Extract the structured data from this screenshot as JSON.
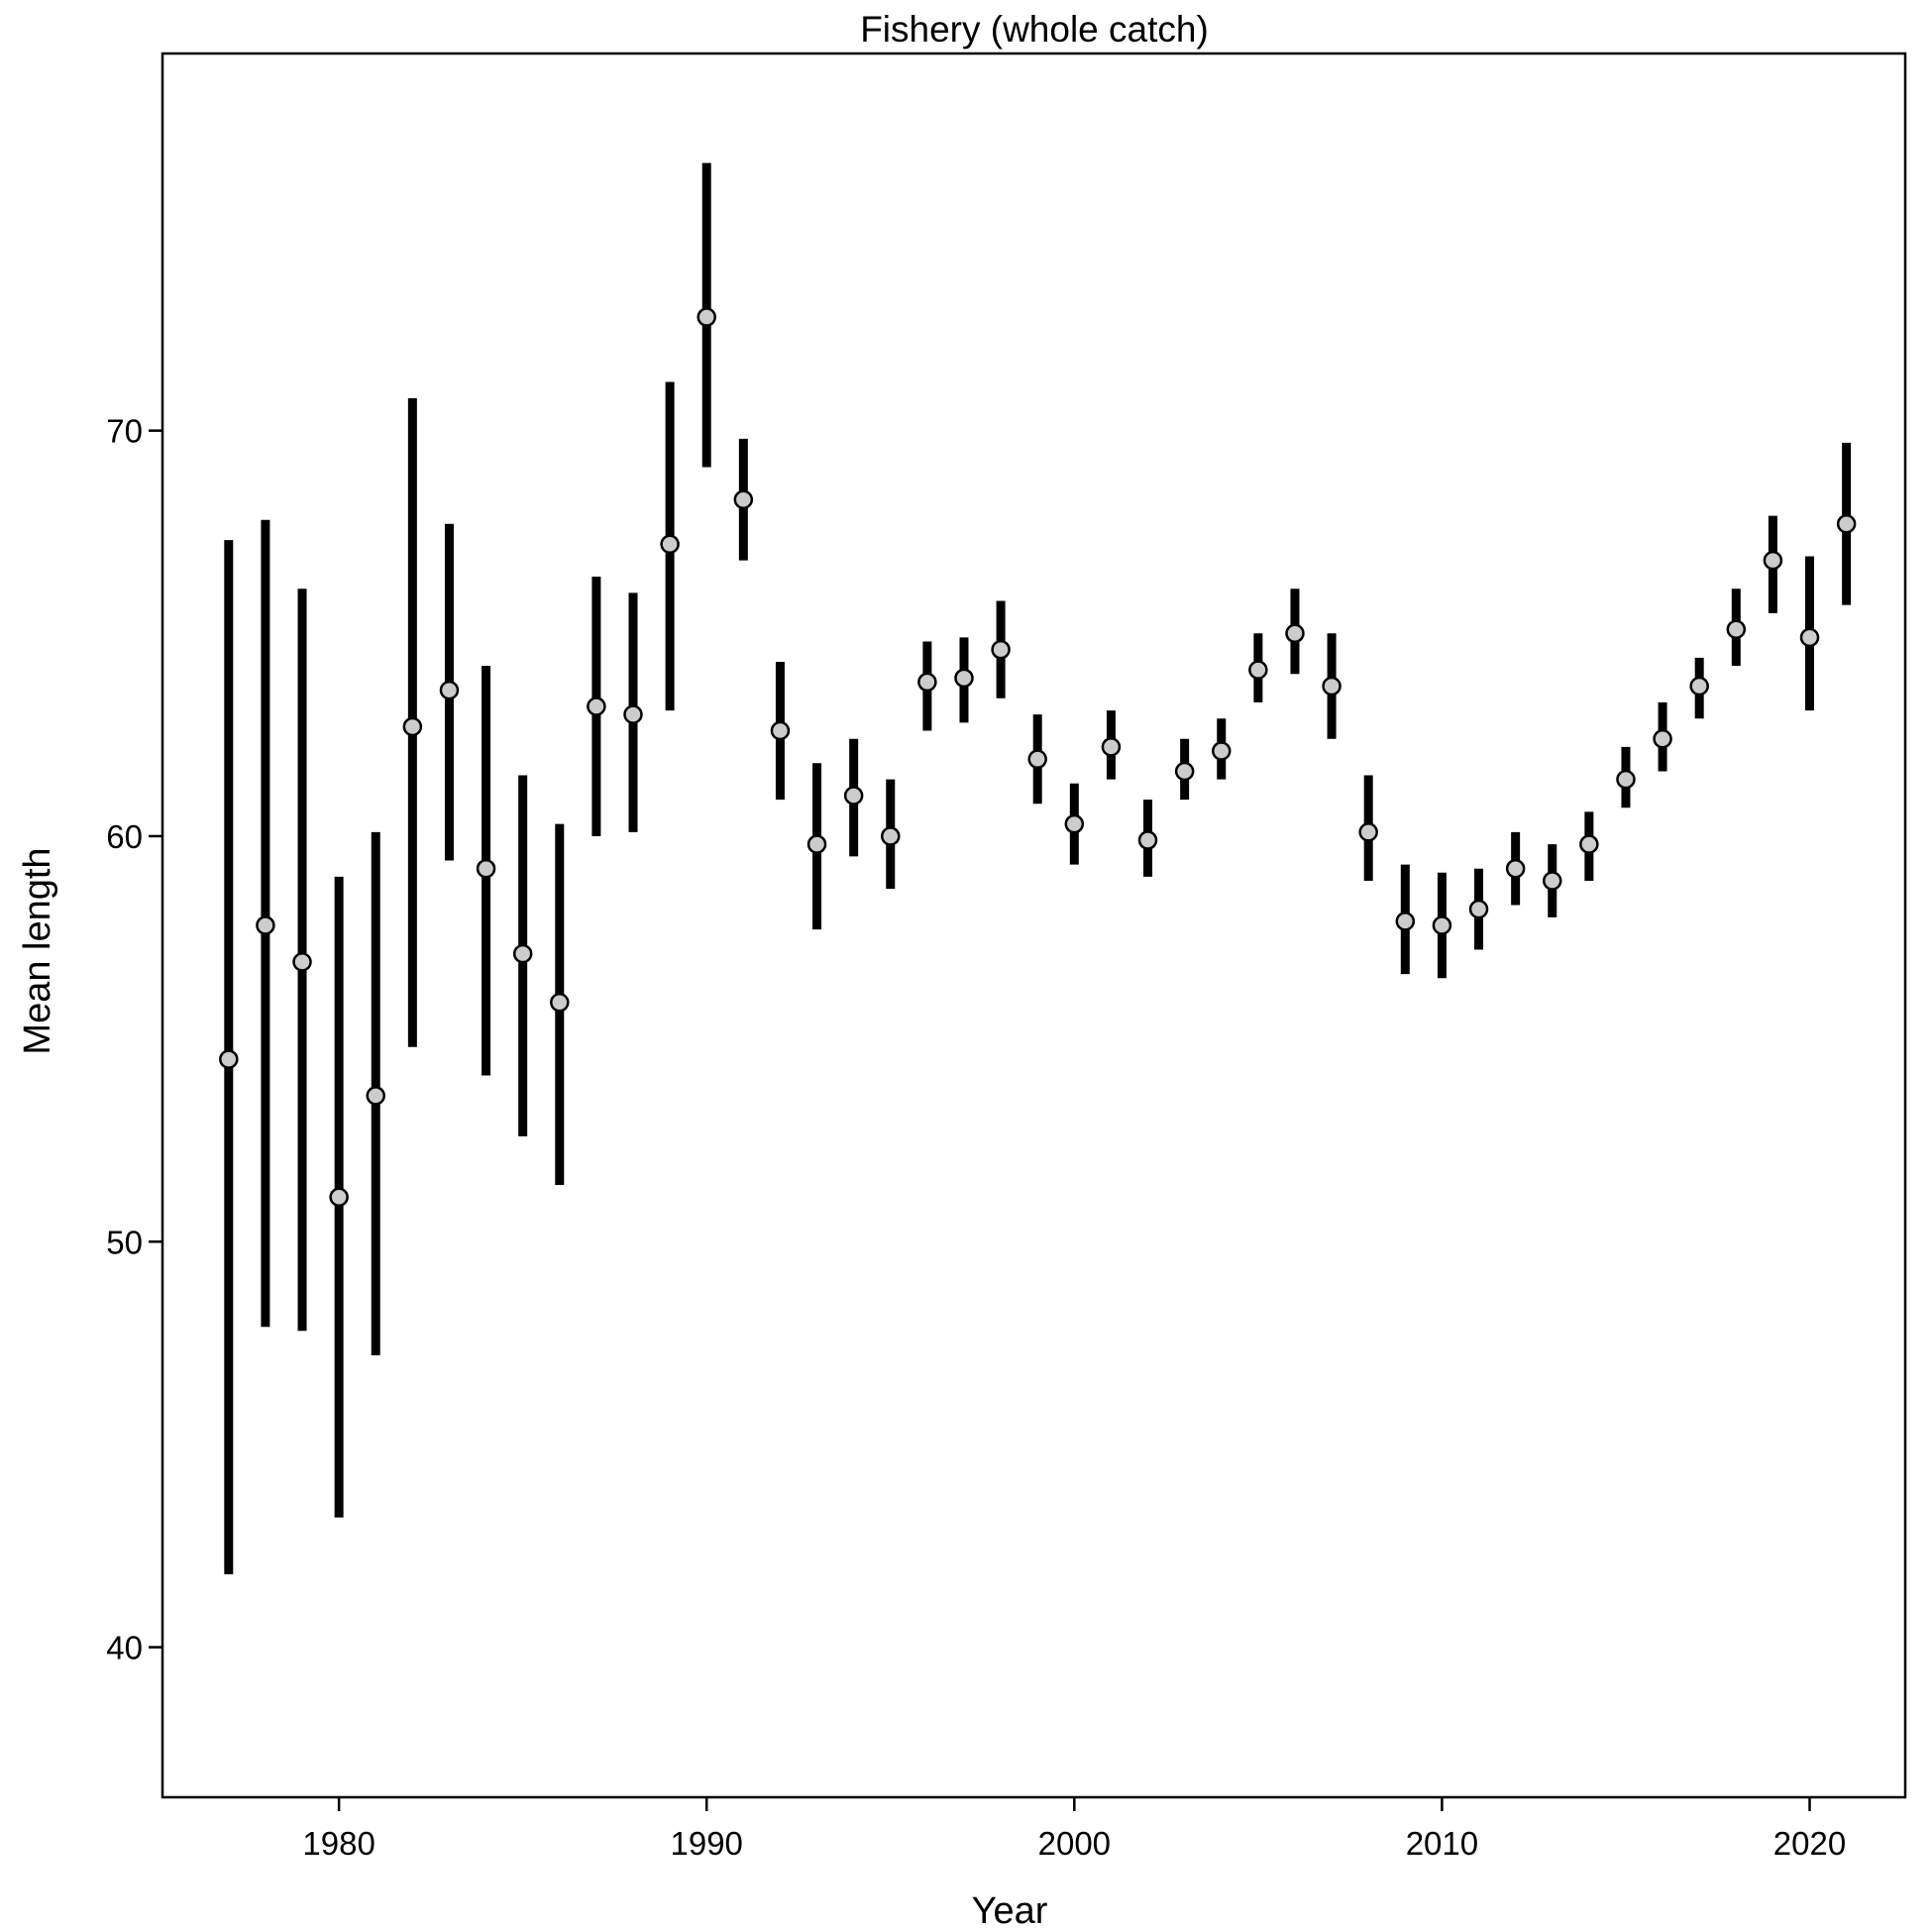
{
  "chart_data": {
    "type": "scatter",
    "title": "Fishery (whole catch)",
    "xlabel": "Year",
    "ylabel": "Mean length",
    "xlim": [
      1975.2,
      2022.6
    ],
    "ylim": [
      36.3,
      79.3
    ],
    "x_ticks": [
      1980,
      1990,
      2000,
      2010,
      2020
    ],
    "x_tick_labels": [
      "1980",
      "1990",
      "2000",
      "2010",
      "2020"
    ],
    "y_ticks": [
      40,
      50,
      60,
      70
    ],
    "y_tick_labels": [
      "40",
      "50",
      "60",
      "70"
    ],
    "grid": false,
    "legend": "none",
    "colors": {
      "point_fill": "#cccccc",
      "point_stroke": "#000000",
      "error_bar": "#000000",
      "axis": "#000000"
    },
    "series": [
      {
        "x": [
          1977,
          1978,
          1979,
          1980,
          1981,
          1982,
          1983,
          1984,
          1985,
          1986,
          1987,
          1988,
          1989,
          1990,
          1991,
          1992,
          1993,
          1994,
          1995,
          1996,
          1997,
          1998,
          1999,
          2000,
          2001,
          2002,
          2003,
          2004,
          2005,
          2006,
          2007,
          2008,
          2009,
          2010,
          2011,
          2012,
          2013,
          2014,
          2015,
          2016,
          2017,
          2018,
          2019,
          2020,
          2021
        ],
        "y": [
          54.5,
          57.8,
          56.9,
          51.1,
          53.6,
          62.7,
          63.6,
          59.2,
          57.1,
          55.9,
          63.2,
          63.0,
          67.2,
          72.8,
          68.3,
          62.6,
          59.8,
          61.0,
          60.0,
          63.8,
          63.9,
          64.6,
          61.9,
          60.3,
          62.2,
          59.9,
          61.6,
          62.1,
          64.1,
          65.0,
          63.7,
          60.1,
          57.9,
          57.8,
          58.2,
          59.2,
          58.9,
          59.8,
          61.4,
          62.4,
          63.7,
          65.1,
          66.8,
          64.9,
          67.7
        ],
        "lower": [
          41.8,
          47.9,
          47.8,
          43.2,
          47.2,
          54.8,
          59.4,
          54.1,
          52.6,
          51.4,
          60.0,
          60.1,
          63.1,
          69.1,
          66.8,
          60.9,
          57.7,
          59.5,
          58.7,
          62.6,
          62.8,
          63.4,
          60.8,
          59.3,
          61.4,
          59.0,
          60.9,
          61.4,
          63.3,
          64.0,
          62.4,
          58.9,
          56.6,
          56.5,
          57.2,
          58.3,
          58.0,
          58.9,
          60.7,
          61.6,
          62.9,
          64.2,
          65.5,
          63.1,
          65.7
        ],
        "upper": [
          67.3,
          67.8,
          66.1,
          59.0,
          60.1,
          70.8,
          67.7,
          64.2,
          61.5,
          60.3,
          66.4,
          66.0,
          71.2,
          76.6,
          69.8,
          64.3,
          61.8,
          62.4,
          61.4,
          64.8,
          64.9,
          65.8,
          63.0,
          61.3,
          63.1,
          60.9,
          62.4,
          62.9,
          65.0,
          66.1,
          65.0,
          61.5,
          59.3,
          59.1,
          59.2,
          60.1,
          59.8,
          60.6,
          62.2,
          63.3,
          64.4,
          66.1,
          67.9,
          66.9,
          69.7
        ]
      }
    ]
  }
}
